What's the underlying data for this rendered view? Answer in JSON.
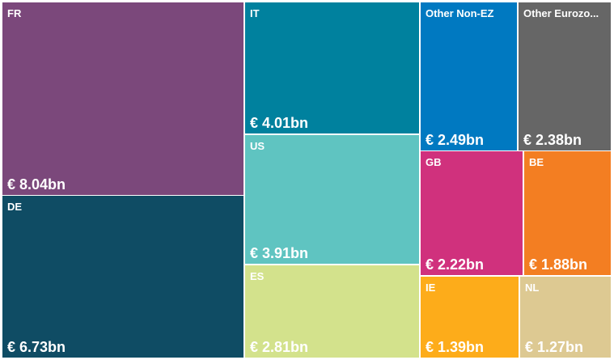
{
  "chart_data": {
    "type": "treemap",
    "currency_prefix": "€ ",
    "unit_suffix": "bn",
    "items": [
      {
        "name": "FR",
        "value": 8.04,
        "label": "€ 8.04bn",
        "color": "#7b487b"
      },
      {
        "name": "DE",
        "value": 6.73,
        "label": "€ 6.73bn",
        "color": "#0f4c64"
      },
      {
        "name": "IT",
        "value": 4.01,
        "label": "€ 4.01bn",
        "color": "#00819e"
      },
      {
        "name": "US",
        "value": 3.91,
        "label": "€ 3.91bn",
        "color": "#5fc4c1"
      },
      {
        "name": "ES",
        "value": 2.81,
        "label": "€ 2.81bn",
        "color": "#d3e28c"
      },
      {
        "name": "Other Non-EZ",
        "value": 2.49,
        "label": "€ 2.49bn",
        "color": "#0079c1"
      },
      {
        "name": "Other Eurozo...",
        "value": 2.38,
        "label": "€ 2.38bn",
        "color": "#666666"
      },
      {
        "name": "GB",
        "value": 2.22,
        "label": "€ 2.22bn",
        "color": "#d0317d"
      },
      {
        "name": "BE",
        "value": 1.88,
        "label": "€ 1.88bn",
        "color": "#f37e22"
      },
      {
        "name": "IE",
        "value": 1.39,
        "label": "€ 1.39bn",
        "color": "#fdac1a"
      },
      {
        "name": "NL",
        "value": 1.27,
        "label": "€ 1.27bn",
        "color": "#ddc992"
      }
    ]
  }
}
